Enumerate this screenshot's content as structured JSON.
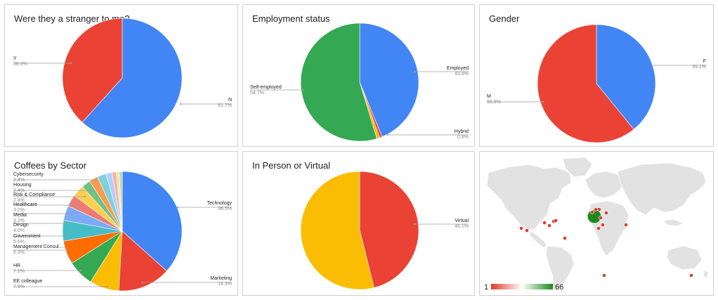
{
  "charts": [
    {
      "id": "stranger",
      "title": "Were they a stranger to me?",
      "chart_data": {
        "type": "pie",
        "title": "Were they a stranger to me?",
        "slices": [
          {
            "label": "N",
            "value": 61.7,
            "pct": "61.7%",
            "color": "#4285f4"
          },
          {
            "label": "Y",
            "value": 38.3,
            "pct": "38.3%",
            "color": "#ea4335"
          }
        ]
      }
    },
    {
      "id": "employment",
      "title": "Employment status",
      "chart_data": {
        "type": "pie",
        "title": "Employment status",
        "slices": [
          {
            "label": "Employed",
            "value": 43.8,
            "pct": "43.8%",
            "color": "#4285f4"
          },
          {
            "label": "",
            "value": 0.7,
            "pct": "",
            "color": "#ea4335"
          },
          {
            "label": "Hybrid",
            "value": 0.8,
            "pct": "0.8%",
            "color": "#fbbc04"
          },
          {
            "label": "Self-employed",
            "value": 54.7,
            "pct": "54.7%",
            "color": "#34a853"
          }
        ]
      }
    },
    {
      "id": "gender",
      "title": "Gender",
      "chart_data": {
        "type": "pie",
        "title": "Gender",
        "slices": [
          {
            "label": "F",
            "value": 39.1,
            "pct": "39.1%",
            "color": "#4285f4"
          },
          {
            "label": "M",
            "value": 60.9,
            "pct": "60.9%",
            "color": "#ea4335"
          }
        ]
      }
    },
    {
      "id": "sector",
      "title": "Coffees by Sector",
      "chart_data": {
        "type": "pie",
        "title": "Coffees by Sector",
        "slices": [
          {
            "label": "Technology",
            "value": 36.5,
            "pct": "36.5%",
            "color": "#4285f4"
          },
          {
            "label": "Marketing",
            "value": 14.3,
            "pct": "14.3%",
            "color": "#ea4335"
          },
          {
            "label": "EE colleague",
            "value": 7.9,
            "pct": "7.9%",
            "color": "#fbbc04"
          },
          {
            "label": "HR",
            "value": 7.1,
            "pct": "7.1%",
            "color": "#34a853"
          },
          {
            "label": "Management Consul...",
            "value": 6.3,
            "pct": "6.3%",
            "color": "#ff6d01"
          },
          {
            "label": "Government",
            "value": 5.6,
            "pct": "5.6%",
            "color": "#46bdc6"
          },
          {
            "label": "Design",
            "value": 4.0,
            "pct": "4.0%",
            "color": "#7baaf7"
          },
          {
            "label": "Media",
            "value": 3.2,
            "pct": "3.2%",
            "color": "#f07b72"
          },
          {
            "label": "Healthcare",
            "value": 3.2,
            "pct": "3.2%",
            "color": "#fcd04f"
          },
          {
            "label": "Risk & Compliance",
            "value": 2.4,
            "pct": "2.4%",
            "color": "#71c287"
          },
          {
            "label": "Housing",
            "value": 2.4,
            "pct": "2.4%",
            "color": "#ff994d"
          },
          {
            "label": "Cybersecurity",
            "value": 2.4,
            "pct": "2.4%",
            "color": "#7ed1d7"
          },
          {
            "label": "",
            "value": 1.6,
            "pct": "",
            "color": "#b3cefb"
          },
          {
            "label": "",
            "value": 1.2,
            "pct": "",
            "color": "#f7b4ae"
          },
          {
            "label": "",
            "value": 0.8,
            "pct": "",
            "color": "#fde49b"
          },
          {
            "label": "",
            "value": 0.8,
            "pct": "",
            "color": "#aedcba"
          }
        ]
      }
    },
    {
      "id": "inperson",
      "title": "In Person or Virtual",
      "chart_data": {
        "type": "pie",
        "title": "In Person or Virtual",
        "slices": [
          {
            "label": "Virtual",
            "value": 46.1,
            "pct": "46.1%",
            "color": "#ea4335"
          },
          {
            "label": "",
            "value": 53.9,
            "pct": "",
            "color": "#fbbc04"
          }
        ]
      }
    }
  ],
  "map": {
    "type": "geo",
    "colors": {
      "land": "#e2e2e2",
      "water": "#ffffff",
      "low": "#e03a2c",
      "high": "#1e8a1e"
    },
    "scale": {
      "min_label": "1",
      "max_label": "66"
    }
  }
}
